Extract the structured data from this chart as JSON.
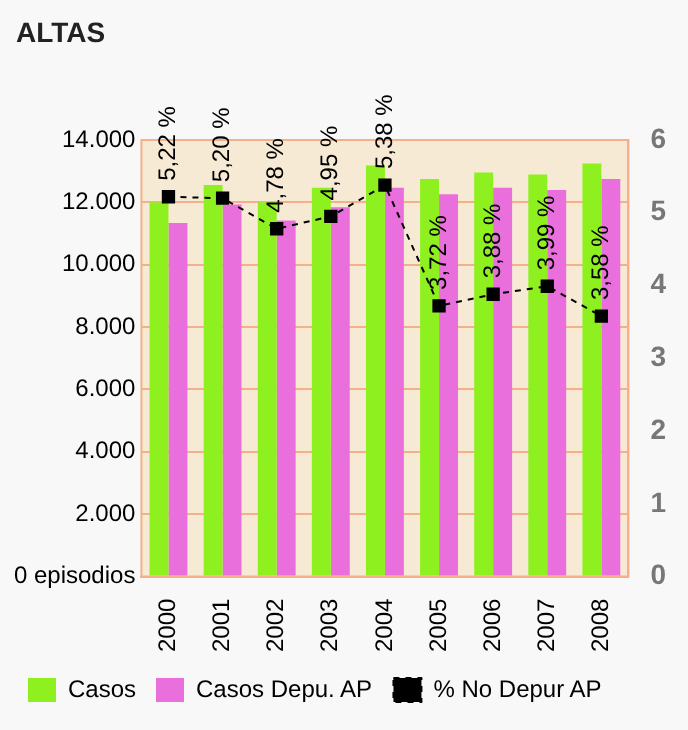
{
  "chart_data": {
    "type": "bar",
    "title": "ALTAS",
    "categories": [
      "2000",
      "2001",
      "2002",
      "2003",
      "2004",
      "2005",
      "2006",
      "2007",
      "2008"
    ],
    "series": [
      {
        "name": "Casos",
        "color": "#8ef01e",
        "values": [
          12000,
          12560,
          12000,
          12470,
          13180,
          12750,
          12960,
          12890,
          13250
        ]
      },
      {
        "name": "Casos Depu. AP",
        "color": "#e86fdc",
        "values": [
          11340,
          11930,
          11420,
          11840,
          12470,
          12260,
          12470,
          12400,
          12750
        ]
      },
      {
        "name": "% No Depur AP",
        "type": "line",
        "axis": "y2",
        "color": "#000000",
        "marker": "square",
        "line_style": "dashed",
        "values": [
          5.22,
          5.2,
          4.78,
          4.95,
          5.38,
          3.72,
          3.88,
          3.99,
          3.58
        ],
        "value_labels": [
          "5,22 %",
          "5,20 %",
          "4,78 %",
          "4,95 %",
          "5,38 %",
          "3,72 %",
          "3,88 %",
          "3,99 %",
          "3,58 %"
        ]
      }
    ],
    "ylim": [
      0,
      14000
    ],
    "yticks": [
      {
        "value": 0,
        "label": "0 episodios"
      },
      {
        "value": 2000,
        "label": "2.000"
      },
      {
        "value": 4000,
        "label": "4.000"
      },
      {
        "value": 6000,
        "label": "6.000"
      },
      {
        "value": 8000,
        "label": "8.000"
      },
      {
        "value": 10000,
        "label": "10.000"
      },
      {
        "value": 12000,
        "label": "12.000"
      },
      {
        "value": 14000,
        "label": "14.000"
      }
    ],
    "y2lim": [
      0,
      6
    ],
    "y2ticks": [
      0,
      1,
      2,
      3,
      4,
      5,
      6
    ],
    "grid": "y",
    "legend": "bottom"
  }
}
